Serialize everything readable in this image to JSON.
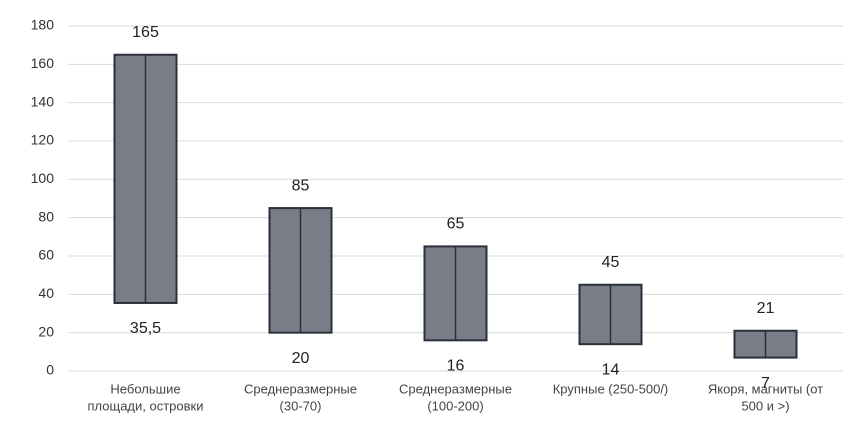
{
  "chart_data": {
    "type": "range_bar",
    "categories": [
      [
        "Небольшие",
        "площади, островки"
      ],
      [
        "Среднеразмерные",
        "(30-70)"
      ],
      [
        "Среднеразмерные",
        "(100-200)"
      ],
      [
        "Крупные (250-500/)"
      ],
      [
        "Якоря, магниты (от",
        "500 и >)"
      ]
    ],
    "series": [
      {
        "values": [
          35.5,
          20,
          16,
          14,
          7
        ],
        "value_labels": [
          "35,5",
          "20",
          "16",
          "14",
          "7"
        ]
      },
      {
        "values": [
          165,
          85,
          65,
          45,
          21
        ]
      }
    ],
    "color": "#787d88",
    "edge_color": "#2a303b",
    "ylim": [
      0,
      180
    ],
    "yticks": [
      0,
      20,
      40,
      60,
      80,
      100,
      120,
      140,
      160,
      180
    ],
    "grid": true
  }
}
